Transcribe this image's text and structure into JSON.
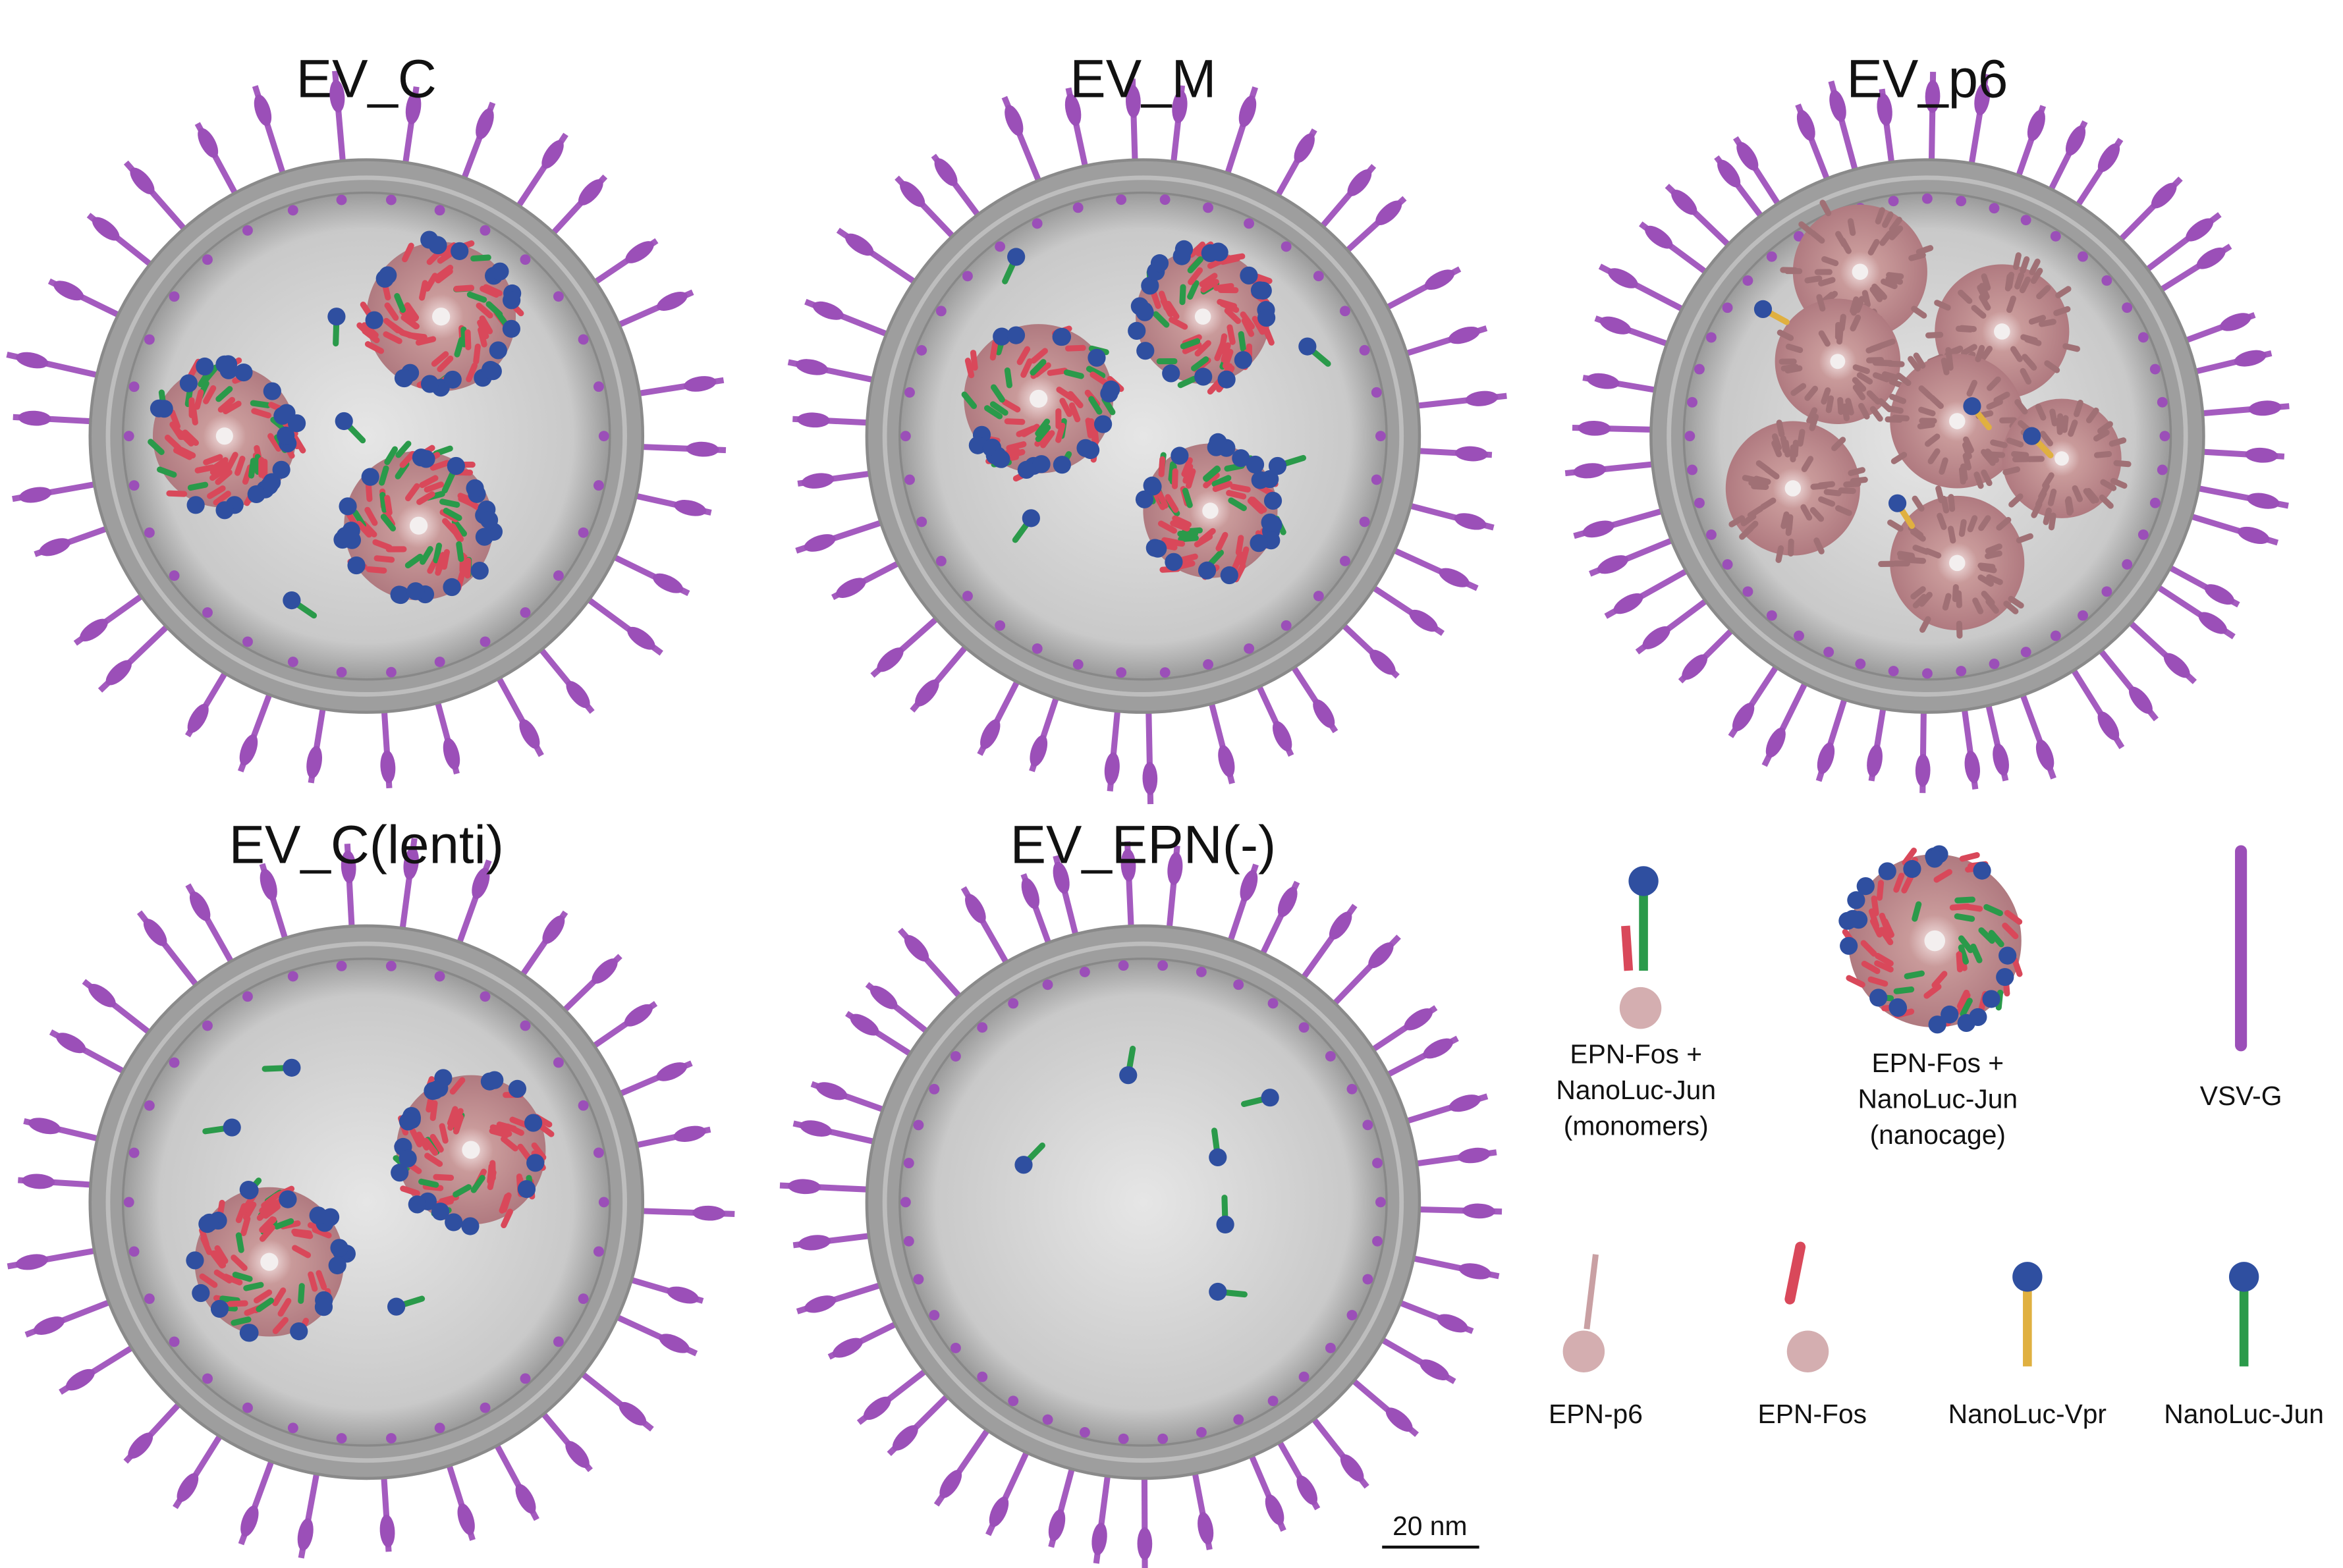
{
  "panels": [
    {
      "title": "EV_C"
    },
    {
      "title": "EV_M"
    },
    {
      "title": "EV_p6"
    },
    {
      "title": "EV_C(lenti)"
    },
    {
      "title": "EV_EPN(-)"
    }
  ],
  "legend": [
    {
      "lines": [
        "EPN-Fos +",
        "NanoLuc-Jun",
        "(monomers)"
      ]
    },
    {
      "lines": [
        "EPN-Fos +",
        "NanoLuc-Jun",
        "(nanocage)"
      ]
    },
    {
      "lines": [
        "VSV-G"
      ]
    },
    {
      "lines": [
        "EPN-p6"
      ]
    },
    {
      "lines": [
        "EPN-Fos"
      ]
    },
    {
      "lines": [
        "NanoLuc-Vpr"
      ]
    },
    {
      "lines": [
        "NanoLuc-Jun"
      ]
    }
  ],
  "scale_bar": "20 nm"
}
